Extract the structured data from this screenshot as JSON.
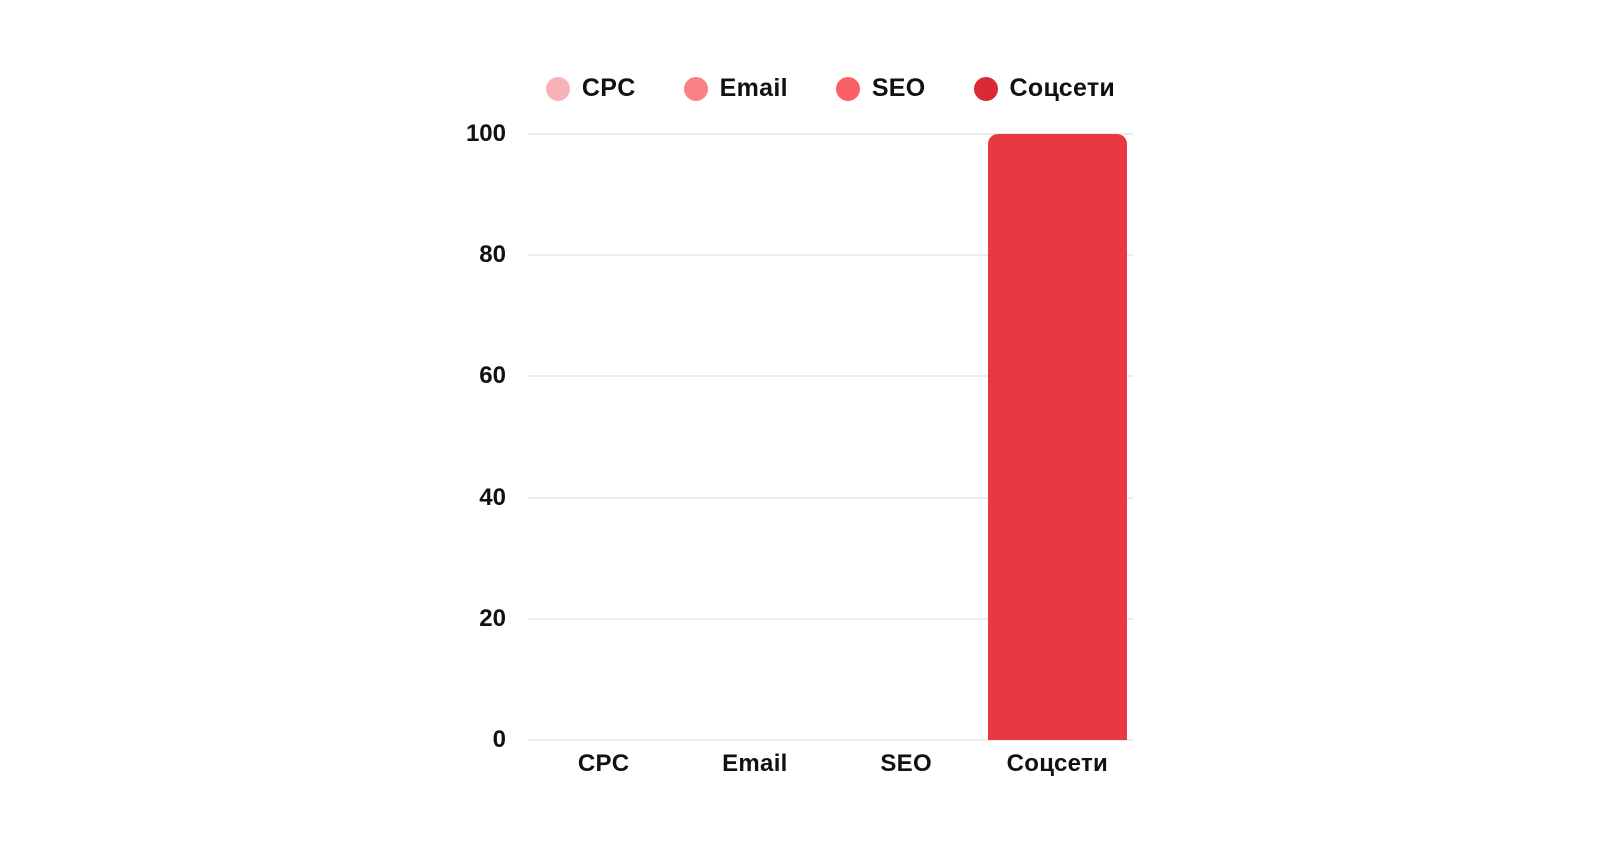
{
  "chart_data": {
    "type": "bar",
    "title": "",
    "xlabel": "",
    "ylabel": "",
    "categories": [
      "CPC",
      "Email",
      "SEO",
      "Соцсети"
    ],
    "values": [
      0,
      0,
      0,
      100
    ],
    "legend_items": [
      {
        "label": "CPC",
        "color": "#F9B2B8"
      },
      {
        "label": "Email",
        "color": "#FA8086"
      },
      {
        "label": "SEO",
        "color": "#FA5F68"
      },
      {
        "label": "Соцсети",
        "color": "#DB2A33",
        "bar_color": "#E73843"
      }
    ],
    "legend_position": "top",
    "yticks": [
      0,
      20,
      40,
      60,
      80,
      100
    ],
    "ylim": [
      0,
      100
    ],
    "grid": "horizontal"
  },
  "colors": {
    "background": "#FFFFFF",
    "gridline": "#ECECEC",
    "text": "#111111"
  }
}
